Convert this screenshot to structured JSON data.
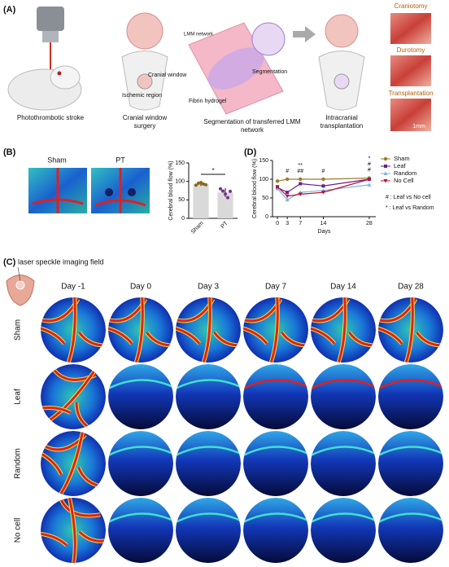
{
  "figure": {
    "panel_a": {
      "label": "(A)",
      "captions": [
        "Photothrombotic stroke",
        "Cranial window surgery",
        "Segmentation of transferred LMM network",
        "Intracranial transplantation"
      ],
      "callouts": [
        "Cranial window",
        "Ischemic region",
        "LMM network",
        "Fibrin hydrogel",
        "Segmentation"
      ],
      "photos": [
        "Craniotomy",
        "Durotomy",
        "Transplantation"
      ],
      "scale_bar": "1mm"
    },
    "panel_b": {
      "label": "(B)",
      "images": [
        "Sham",
        "PT"
      ]
    },
    "panel_c": {
      "label": "(C)",
      "field": "laser speckle imaging field",
      "days": [
        "Day -1",
        "Day 0",
        "Day 3",
        "Day 7",
        "Day 14",
        "Day 28"
      ],
      "groups": [
        "Sham",
        "Leaf",
        "Random",
        "No cell"
      ]
    },
    "panel_d": {
      "label": "(D)",
      "notes": [
        "# : Leaf vs No cell",
        "* : Leaf vs Random"
      ]
    }
  },
  "chart_data": [
    {
      "type": "bar",
      "y_label": "Cerebral blood flow (%)",
      "categories": [
        "Sham",
        "PT"
      ],
      "values": [
        93,
        70
      ],
      "errors": [
        5,
        12
      ],
      "points": [
        [
          90,
          95,
          97,
          93,
          91
        ],
        [
          80,
          74,
          66,
          56,
          73
        ]
      ],
      "color": "#d9d9d9",
      "point_colors": [
        "#8b6914",
        "#7b2d8e"
      ],
      "ylim": [
        0,
        150
      ],
      "yticks": [
        0,
        50,
        100,
        150
      ],
      "significance": "*"
    },
    {
      "type": "line",
      "y_label": "Cerebral blood flow (%)",
      "x_label": "Days",
      "x": [
        0,
        3,
        7,
        14,
        28
      ],
      "xlim": [
        -1.5,
        30
      ],
      "xticks": [
        0,
        3,
        7,
        14,
        28
      ],
      "ylim": [
        0,
        150
      ],
      "yticks": [
        0,
        50,
        100,
        150
      ],
      "series": [
        {
          "name": "Sham",
          "color": "#9c7a2b",
          "marker": "circle",
          "values": [
            95,
            100,
            100,
            100,
            103
          ]
        },
        {
          "name": "Leaf",
          "color": "#6b1d8f",
          "marker": "square",
          "values": [
            78,
            65,
            88,
            82,
            100
          ]
        },
        {
          "name": "Random",
          "color": "#7fb2e5",
          "marker": "triangle",
          "values": [
            75,
            45,
            65,
            70,
            85
          ]
        },
        {
          "name": "No Cell",
          "color": "#b2182b",
          "marker": "triangle-down",
          "values": [
            80,
            55,
            60,
            65,
            100
          ]
        }
      ],
      "significance": [
        {
          "x": 3,
          "labels": [
            "#"
          ]
        },
        {
          "x": 7,
          "labels": [
            "##",
            "**"
          ]
        },
        {
          "x": 14,
          "labels": [
            "#"
          ]
        },
        {
          "x": 28,
          "labels": [
            "#",
            "#",
            "*"
          ]
        }
      ]
    }
  ]
}
